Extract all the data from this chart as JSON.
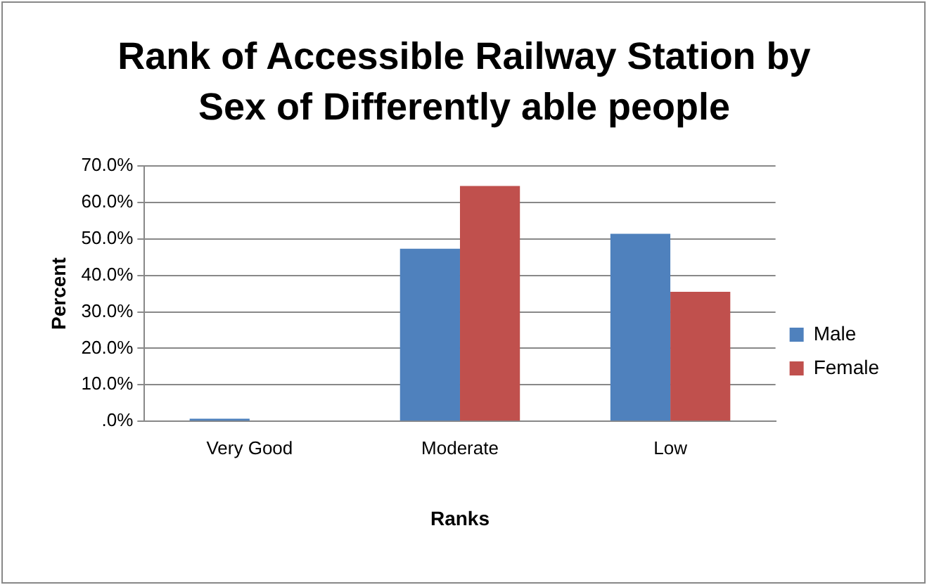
{
  "chart_data": {
    "type": "bar",
    "title": "Rank of Accessible Railway Station by Sex of Differently able people",
    "xlabel": "Ranks",
    "ylabel": "Percent",
    "categories": [
      "Very Good",
      "Moderate",
      "Low"
    ],
    "series": [
      {
        "name": "Male",
        "color": "#4f81bd",
        "values": [
          0.7,
          47.3,
          51.4
        ]
      },
      {
        "name": "Female",
        "color": "#c0504d",
        "values": [
          0,
          64.5,
          35.5
        ]
      }
    ],
    "ylim": [
      0,
      70
    ],
    "yticks": [
      {
        "value": 0,
        "label": ".0%"
      },
      {
        "value": 10,
        "label": "10.0%"
      },
      {
        "value": 20,
        "label": "20.0%"
      },
      {
        "value": 30,
        "label": "30.0%"
      },
      {
        "value": 40,
        "label": "40.0%"
      },
      {
        "value": 50,
        "label": "50.0%"
      },
      {
        "value": 60,
        "label": "60.0%"
      },
      {
        "value": 70,
        "label": "70.0%"
      }
    ],
    "grid": "y",
    "legend": "right"
  }
}
